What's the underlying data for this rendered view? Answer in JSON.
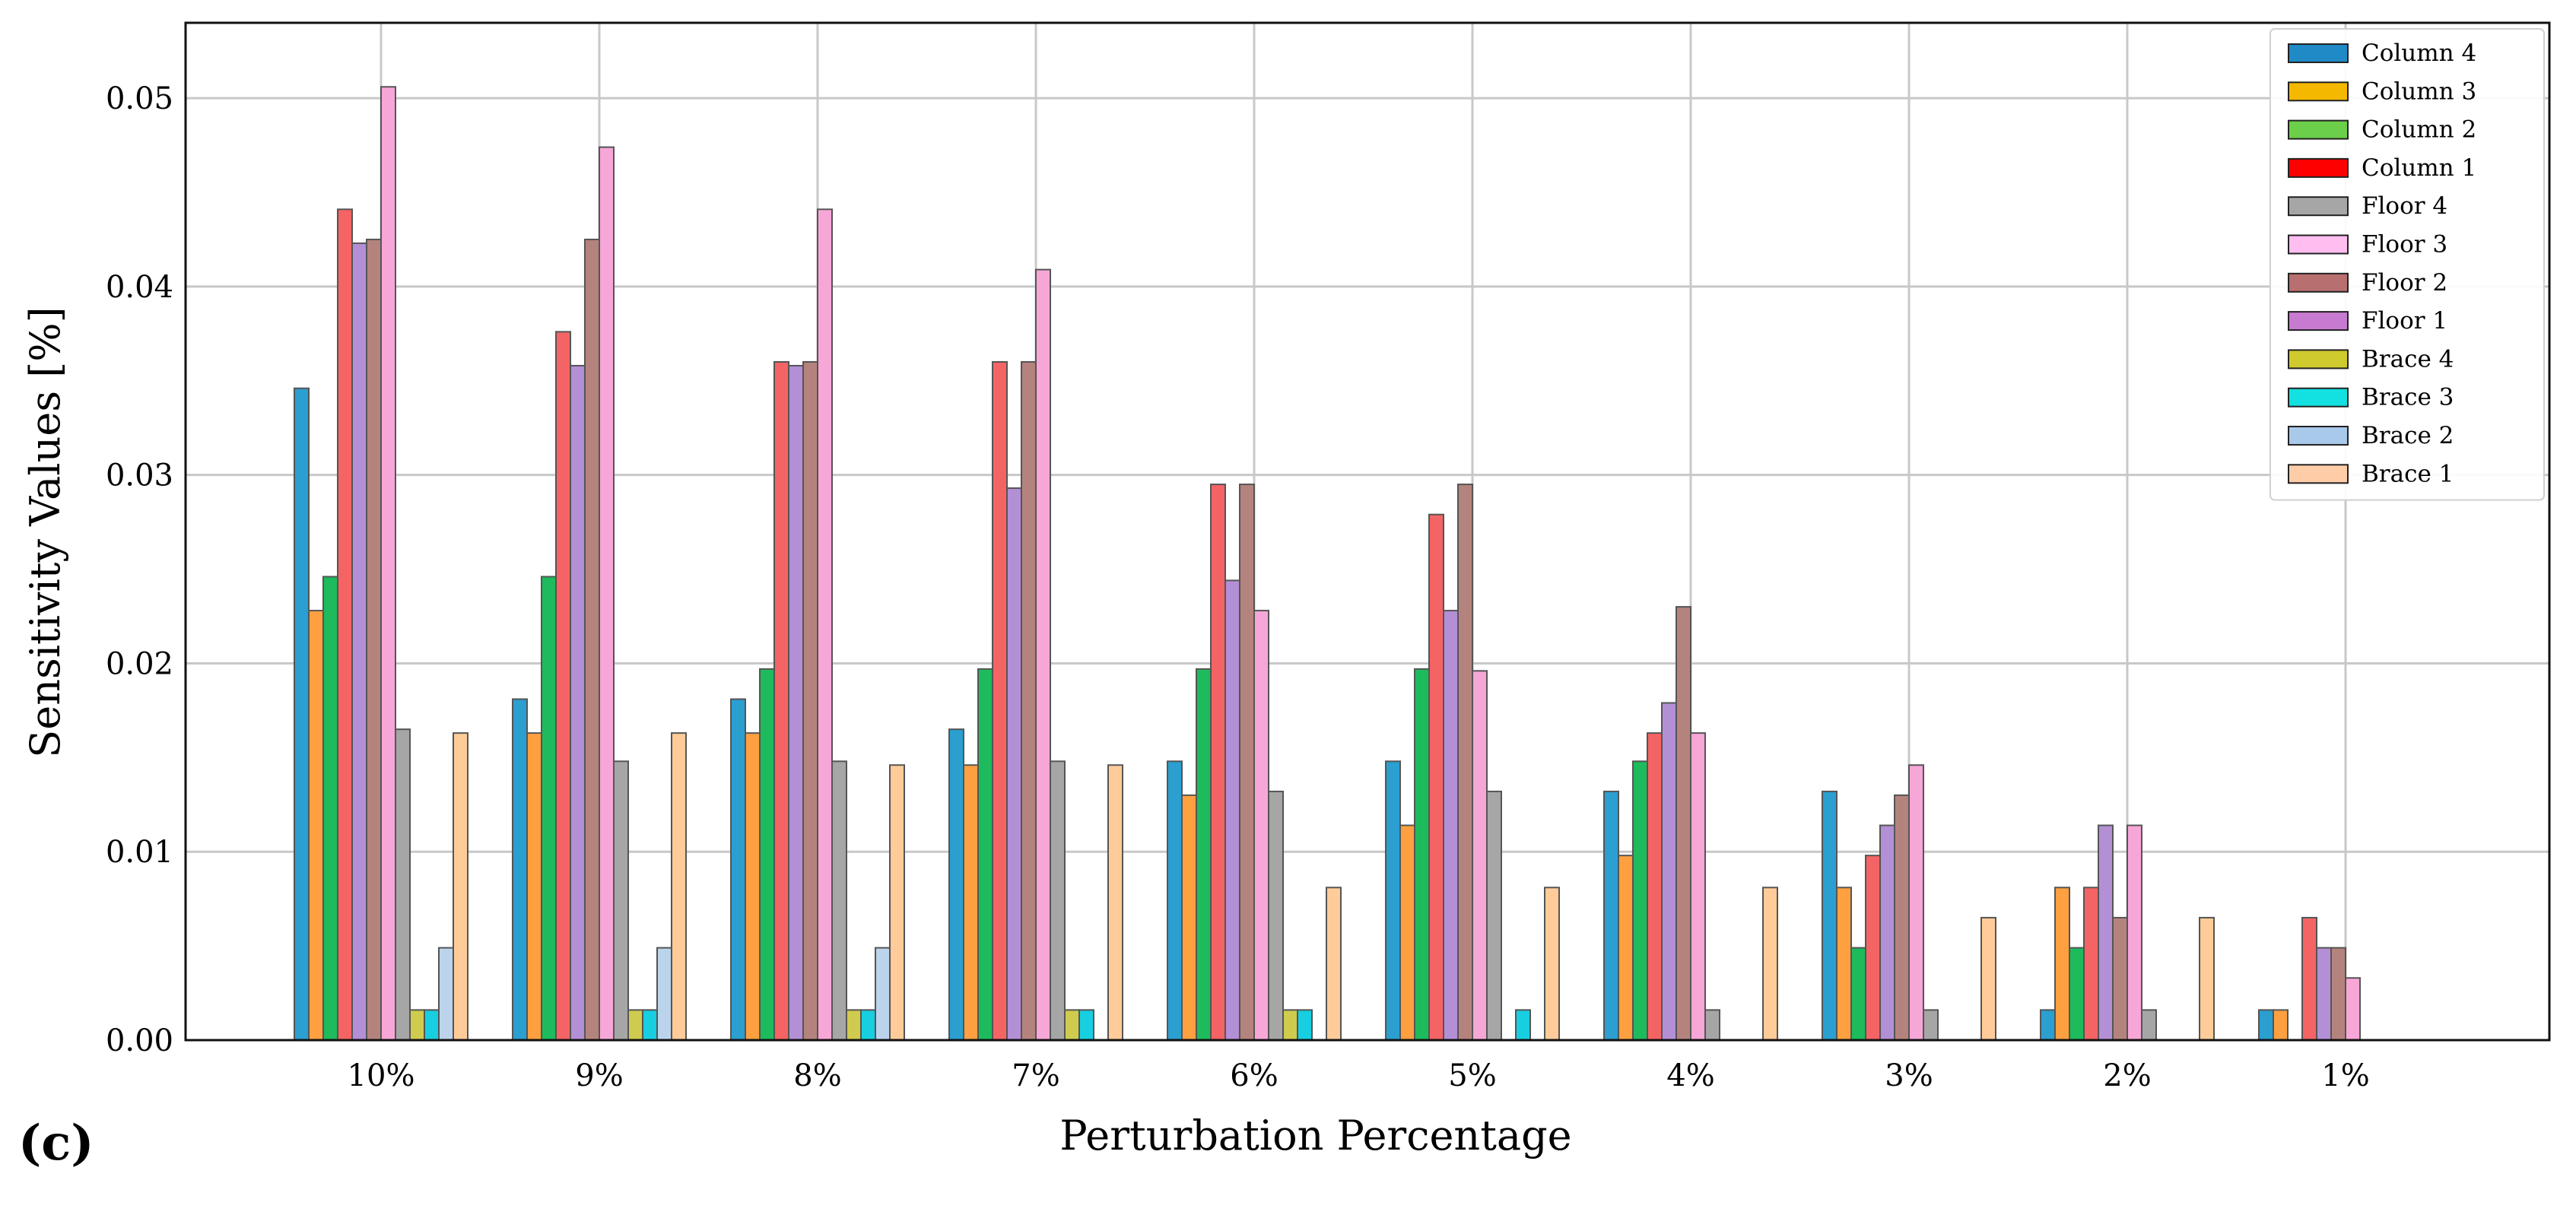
{
  "panel_label": "(c)",
  "chart_data": {
    "type": "bar",
    "title": "",
    "xlabel": "Perturbation Percentage",
    "ylabel": "Sensitivity Values [%]",
    "ylim": [
      0,
      0.054
    ],
    "yticks": [
      0.0,
      0.01,
      0.02,
      0.03,
      0.04,
      0.05
    ],
    "ytick_labels": [
      "0.00",
      "0.01",
      "0.02",
      "0.03",
      "0.04",
      "0.05"
    ],
    "grid": true,
    "legend_position": "top-right",
    "categories": [
      "10%",
      "9%",
      "8%",
      "7%",
      "6%",
      "5%",
      "4%",
      "3%",
      "2%",
      "1%"
    ],
    "series": [
      {
        "name": "Column 4",
        "color": "#2a9fd0",
        "values": [
          0.0346,
          0.0181,
          0.0181,
          0.0165,
          0.0148,
          0.0148,
          0.0132,
          0.0132,
          0.0016,
          0.0016
        ]
      },
      {
        "name": "Column 3",
        "color": "#ffa040",
        "values": [
          0.0228,
          0.0163,
          0.0163,
          0.0146,
          0.013,
          0.0114,
          0.0098,
          0.0081,
          0.0081,
          0.0016
        ]
      },
      {
        "name": "Column 2",
        "color": "#1dbb5c",
        "values": [
          0.0246,
          0.0246,
          0.0197,
          0.0197,
          0.0197,
          0.0197,
          0.0148,
          0.0049,
          0.0049,
          0
        ]
      },
      {
        "name": "Column 1",
        "color": "#f46464",
        "values": [
          0.0441,
          0.0376,
          0.036,
          0.036,
          0.0295,
          0.0279,
          0.0163,
          0.0098,
          0.0081,
          0.0065
        ]
      },
      {
        "name": "Floor 1",
        "color": "#b38fd6",
        "values": [
          0.0423,
          0.0358,
          0.0358,
          0.0293,
          0.0244,
          0.0228,
          0.0179,
          0.0114,
          0.0114,
          0.0049
        ]
      },
      {
        "name": "Floor 2",
        "color": "#b5837d",
        "values": [
          0.0425,
          0.0425,
          0.036,
          0.036,
          0.0295,
          0.0295,
          0.023,
          0.013,
          0.0065,
          0.0049
        ]
      },
      {
        "name": "Floor 3",
        "color": "#f7a6d8",
        "values": [
          0.0506,
          0.0474,
          0.0441,
          0.0409,
          0.0228,
          0.0196,
          0.0163,
          0.0146,
          0.0114,
          0.0033
        ]
      },
      {
        "name": "Floor 4",
        "color": "#a6a6a6",
        "values": [
          0.0165,
          0.0148,
          0.0148,
          0.0148,
          0.0132,
          0.0132,
          0.0016,
          0.0016,
          0.0016,
          0
        ]
      },
      {
        "name": "Brace 4",
        "color": "#cfcb4e",
        "values": [
          0.0016,
          0.0016,
          0.0016,
          0.0016,
          0.0016,
          0,
          0,
          0,
          0,
          0
        ]
      },
      {
        "name": "Brace 3",
        "color": "#17cfe0",
        "values": [
          0.0016,
          0.0016,
          0.0016,
          0.0016,
          0.0016,
          0.0016,
          0,
          0,
          0,
          0
        ]
      },
      {
        "name": "Brace 2",
        "color": "#bcd3ec",
        "values": [
          0.0049,
          0.0049,
          0.0049,
          0,
          0,
          0,
          0,
          0,
          0,
          0
        ]
      },
      {
        "name": "Brace 1",
        "color": "#ffcc99",
        "values": [
          0.0163,
          0.0163,
          0.0146,
          0.0146,
          0.0081,
          0.0081,
          0.0081,
          0.0065,
          0.0065,
          0
        ]
      }
    ],
    "legend": [
      {
        "label": "Column 4",
        "color": "#1f8ac6"
      },
      {
        "label": "Column 3",
        "color": "#f5b800"
      },
      {
        "label": "Column 2",
        "color": "#6ccf4a"
      },
      {
        "label": "Column 1",
        "color": "#ff0000"
      },
      {
        "label": "Floor 4",
        "color": "#a6a6a6"
      },
      {
        "label": "Floor 3",
        "color": "#ffbdf0"
      },
      {
        "label": "Floor 2",
        "color": "#b86f6f"
      },
      {
        "label": "Floor 1",
        "color": "#c77bd0"
      },
      {
        "label": "Brace 4",
        "color": "#cfcb2e"
      },
      {
        "label": "Brace 3",
        "color": "#13e0e0"
      },
      {
        "label": "Brace 2",
        "color": "#a9c9ea"
      },
      {
        "label": "Brace 1",
        "color": "#ffcca8"
      }
    ]
  }
}
